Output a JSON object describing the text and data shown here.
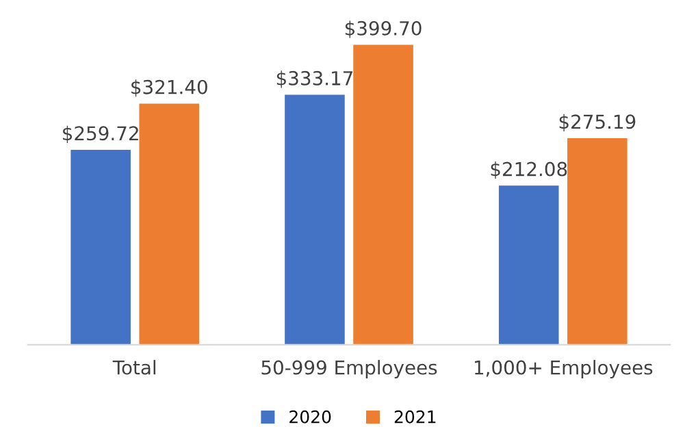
{
  "chart_data": {
    "type": "bar",
    "categories": [
      "Total",
      "50-999 Employees",
      "1,000+ Employees"
    ],
    "series": [
      {
        "name": "2020",
        "color": "#4472c4",
        "values": [
          259.72,
          333.17,
          212.08
        ],
        "value_labels": [
          "$259.72",
          "$333.17",
          "$212.08"
        ]
      },
      {
        "name": "2021",
        "color": "#ed7d31",
        "values": [
          321.4,
          399.7,
          275.19
        ],
        "value_labels": [
          "$321.40",
          "$399.70",
          "$275.19"
        ]
      }
    ],
    "legend": "bottom",
    "grid": false,
    "tick_labels": "x"
  }
}
